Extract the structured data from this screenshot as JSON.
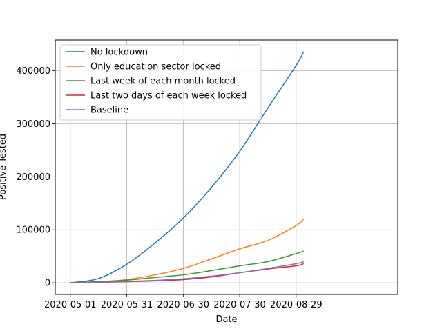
{
  "chart_data": {
    "type": "line",
    "title": "",
    "xlabel": "Date",
    "ylabel": "Positive Tested",
    "x_tick_labels": [
      "2020-05-01",
      "2020-05-31",
      "2020-06-30",
      "2020-07-30",
      "2020-08-29"
    ],
    "x_range_days": [
      -8,
      174
    ],
    "x_tick_days": [
      0,
      30,
      60,
      90,
      120
    ],
    "y_ticks": [
      0,
      100000,
      200000,
      300000,
      400000
    ],
    "ylim": [
      -22000,
      458000
    ],
    "grid": true,
    "legend_position": "top-left",
    "x_days": [
      0,
      15,
      30,
      45,
      60,
      75,
      90,
      105,
      120,
      124
    ],
    "series": [
      {
        "name": "No lockdown",
        "color": "#1f77b4",
        "values": [
          0,
          8000,
          35000,
          75000,
          122000,
          180000,
          248000,
          330000,
          410000,
          436000
        ]
      },
      {
        "name": "Only education sector locked",
        "color": "#ff7f0e",
        "values": [
          0,
          2000,
          6000,
          15000,
          27000,
          45000,
          64000,
          80000,
          108000,
          120000
        ]
      },
      {
        "name": "Last week of each month locked",
        "color": "#2ca02c",
        "values": [
          0,
          2000,
          5000,
          10000,
          15000,
          23000,
          32000,
          40000,
          55000,
          60000
        ]
      },
      {
        "name": "Last two days of each week locked",
        "color": "#d62728",
        "values": [
          0,
          1000,
          2000,
          3500,
          6000,
          11000,
          19000,
          26000,
          32000,
          36000
        ]
      },
      {
        "name": "Baseline",
        "color": "#9467bd",
        "values": [
          0,
          1000,
          2500,
          4500,
          7500,
          12500,
          19000,
          27000,
          36000,
          40000
        ]
      }
    ]
  }
}
